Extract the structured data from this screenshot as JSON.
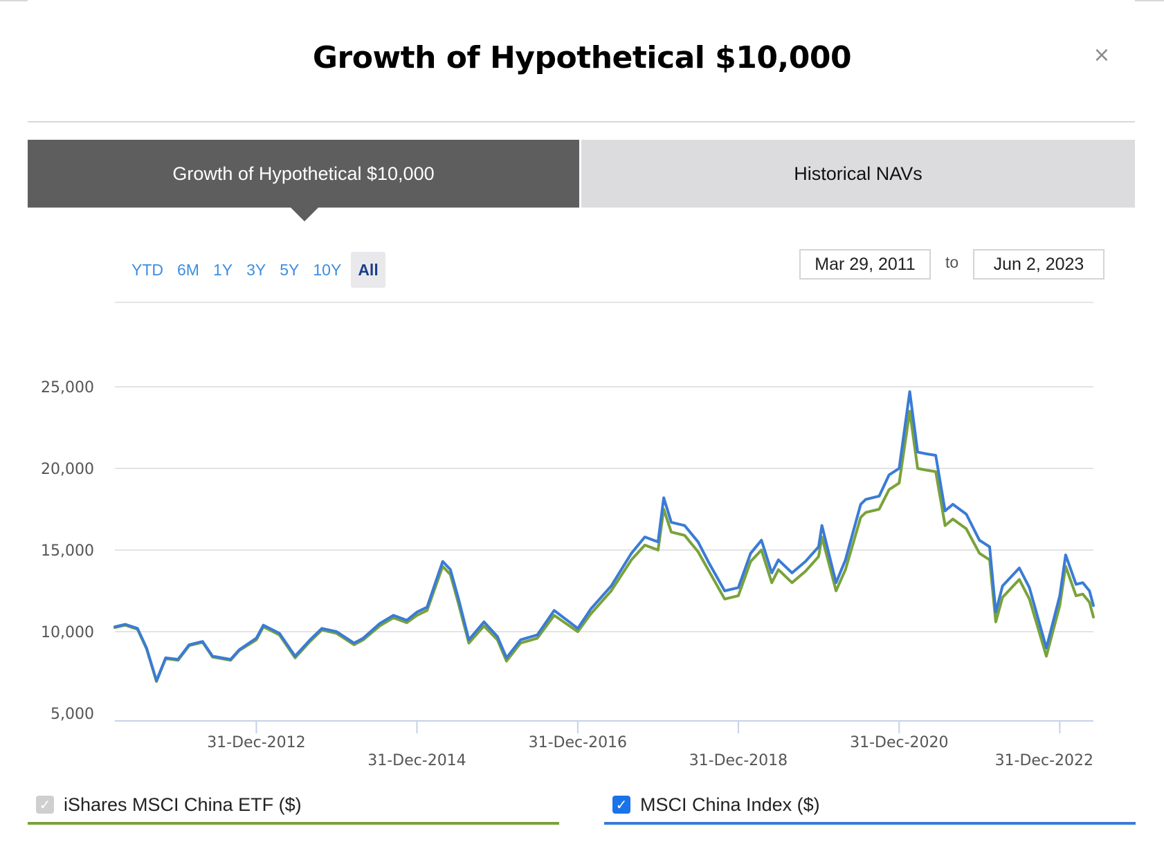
{
  "modal": {
    "title": "Growth of Hypothetical $10,000",
    "close_icon": "×"
  },
  "tabs": [
    {
      "label": "Growth of Hypothetical $10,000",
      "active": true
    },
    {
      "label": "Historical NAVs",
      "active": false
    }
  ],
  "range_buttons": [
    "YTD",
    "6M",
    "1Y",
    "3Y",
    "5Y",
    "10Y",
    "All"
  ],
  "active_range": "All",
  "date_range": {
    "from": "Mar 29, 2011",
    "separator": "to",
    "to": "Jun 2, 2023"
  },
  "legend": [
    {
      "label": "iShares MSCI China ETF ($)",
      "checked": true,
      "disabled": true
    },
    {
      "label": "MSCI China Index ($)",
      "checked": true,
      "disabled": false
    }
  ],
  "colors": {
    "etf": "#7aa23a",
    "index": "#3a7bd5",
    "grid": "#e3e3e3",
    "axis": "#c4d2e6",
    "tab_active": "#5e5e5e",
    "tab_inactive": "#dcdcdf"
  },
  "chart_data": {
    "type": "line",
    "xlabel": "",
    "ylabel": "",
    "x_range": [
      "2011-03-29",
      "2023-06-02"
    ],
    "ylim": [
      5000,
      30000
    ],
    "y_ticks": [
      5000,
      10000,
      15000,
      20000,
      25000
    ],
    "y_tick_labels": [
      "5,000",
      "10,000",
      "15,000",
      "20,000",
      "25,000"
    ],
    "x_ticks": [
      "2012-12-31",
      "2014-12-31",
      "2016-12-31",
      "2018-12-31",
      "2020-12-31",
      "2022-12-31"
    ],
    "x_tick_labels": [
      "31-Dec-2012",
      "31-Dec-2014",
      "31-Dec-2016",
      "31-Dec-2018",
      "31-Dec-2020",
      "31-Dec-2022"
    ],
    "grid": true,
    "series": [
      {
        "name": "MSCI China Index ($)",
        "color": "#3a7bd5",
        "points": [
          [
            "2011-03-29",
            10300
          ],
          [
            "2011-05-15",
            10450
          ],
          [
            "2011-07-10",
            10200
          ],
          [
            "2011-08-20",
            9000
          ],
          [
            "2011-10-04",
            7000
          ],
          [
            "2011-11-15",
            8400
          ],
          [
            "2012-01-10",
            8300
          ],
          [
            "2012-03-01",
            9200
          ],
          [
            "2012-05-01",
            9400
          ],
          [
            "2012-06-15",
            8500
          ],
          [
            "2012-09-05",
            8300
          ],
          [
            "2012-10-15",
            8900
          ],
          [
            "2012-12-31",
            9600
          ],
          [
            "2013-02-01",
            10400
          ],
          [
            "2013-04-15",
            9900
          ],
          [
            "2013-06-25",
            8500
          ],
          [
            "2013-09-01",
            9500
          ],
          [
            "2013-10-25",
            10200
          ],
          [
            "2013-12-31",
            10000
          ],
          [
            "2014-03-20",
            9300
          ],
          [
            "2014-05-01",
            9600
          ],
          [
            "2014-07-15",
            10500
          ],
          [
            "2014-09-15",
            11000
          ],
          [
            "2014-11-15",
            10700
          ],
          [
            "2014-12-31",
            11200
          ],
          [
            "2015-02-15",
            11500
          ],
          [
            "2015-04-27",
            14300
          ],
          [
            "2015-06-01",
            13800
          ],
          [
            "2015-07-08",
            12000
          ],
          [
            "2015-08-24",
            9500
          ],
          [
            "2015-11-01",
            10600
          ],
          [
            "2016-01-01",
            9700
          ],
          [
            "2016-02-11",
            8400
          ],
          [
            "2016-04-15",
            9500
          ],
          [
            "2016-06-30",
            9800
          ],
          [
            "2016-09-15",
            11300
          ],
          [
            "2016-12-31",
            10200
          ],
          [
            "2017-03-01",
            11400
          ],
          [
            "2017-06-01",
            12800
          ],
          [
            "2017-09-01",
            14800
          ],
          [
            "2017-11-01",
            15800
          ],
          [
            "2017-12-31",
            15500
          ],
          [
            "2018-01-26",
            18200
          ],
          [
            "2018-03-01",
            16700
          ],
          [
            "2018-05-01",
            16500
          ],
          [
            "2018-07-01",
            15500
          ],
          [
            "2018-08-20",
            14200
          ],
          [
            "2018-10-30",
            12500
          ],
          [
            "2018-12-31",
            12700
          ],
          [
            "2019-02-25",
            14800
          ],
          [
            "2019-04-15",
            15600
          ],
          [
            "2019-06-01",
            13600
          ],
          [
            "2019-07-01",
            14400
          ],
          [
            "2019-09-01",
            13600
          ],
          [
            "2019-11-01",
            14300
          ],
          [
            "2019-12-31",
            15200
          ],
          [
            "2020-01-15",
            16500
          ],
          [
            "2020-03-19",
            13000
          ],
          [
            "2020-05-01",
            14400
          ],
          [
            "2020-07-09",
            17800
          ],
          [
            "2020-08-01",
            18100
          ],
          [
            "2020-10-01",
            18300
          ],
          [
            "2020-11-15",
            19600
          ],
          [
            "2020-12-31",
            20000
          ],
          [
            "2021-02-17",
            24700
          ],
          [
            "2021-03-25",
            21000
          ],
          [
            "2021-05-01",
            20900
          ],
          [
            "2021-06-15",
            20800
          ],
          [
            "2021-07-28",
            17400
          ],
          [
            "2021-09-01",
            17800
          ],
          [
            "2021-11-01",
            17200
          ],
          [
            "2021-12-31",
            15600
          ],
          [
            "2022-02-15",
            15200
          ],
          [
            "2022-03-15",
            11200
          ],
          [
            "2022-04-15",
            12800
          ],
          [
            "2022-06-30",
            13900
          ],
          [
            "2022-08-15",
            12700
          ],
          [
            "2022-10-31",
            9000
          ],
          [
            "2022-12-31",
            12200
          ],
          [
            "2023-01-27",
            14700
          ],
          [
            "2023-03-15",
            12900
          ],
          [
            "2023-04-15",
            13000
          ],
          [
            "2023-05-15",
            12500
          ],
          [
            "2023-06-02",
            11600
          ]
        ]
      },
      {
        "name": "iShares MSCI China ETF ($)",
        "color": "#7aa23a",
        "points": [
          [
            "2011-03-29",
            10250
          ],
          [
            "2011-05-15",
            10400
          ],
          [
            "2011-07-10",
            10150
          ],
          [
            "2011-08-20",
            8950
          ],
          [
            "2011-10-04",
            6950
          ],
          [
            "2011-11-15",
            8350
          ],
          [
            "2012-01-10",
            8250
          ],
          [
            "2012-03-01",
            9150
          ],
          [
            "2012-05-01",
            9350
          ],
          [
            "2012-06-15",
            8450
          ],
          [
            "2012-09-05",
            8250
          ],
          [
            "2012-10-15",
            8850
          ],
          [
            "2012-12-31",
            9500
          ],
          [
            "2013-02-01",
            10300
          ],
          [
            "2013-04-15",
            9800
          ],
          [
            "2013-06-25",
            8400
          ],
          [
            "2013-09-01",
            9400
          ],
          [
            "2013-10-25",
            10100
          ],
          [
            "2013-12-31",
            9900
          ],
          [
            "2014-03-20",
            9200
          ],
          [
            "2014-05-01",
            9500
          ],
          [
            "2014-07-15",
            10350
          ],
          [
            "2014-09-15",
            10850
          ],
          [
            "2014-11-15",
            10550
          ],
          [
            "2014-12-31",
            11000
          ],
          [
            "2015-02-15",
            11300
          ],
          [
            "2015-04-27",
            14000
          ],
          [
            "2015-06-01",
            13500
          ],
          [
            "2015-07-08",
            11700
          ],
          [
            "2015-08-24",
            9300
          ],
          [
            "2015-11-01",
            10350
          ],
          [
            "2016-01-01",
            9500
          ],
          [
            "2016-02-11",
            8200
          ],
          [
            "2016-04-15",
            9300
          ],
          [
            "2016-06-30",
            9600
          ],
          [
            "2016-09-15",
            11000
          ],
          [
            "2016-12-31",
            10000
          ],
          [
            "2017-03-01",
            11100
          ],
          [
            "2017-06-01",
            12500
          ],
          [
            "2017-09-01",
            14400
          ],
          [
            "2017-11-01",
            15300
          ],
          [
            "2017-12-31",
            15000
          ],
          [
            "2018-01-26",
            17500
          ],
          [
            "2018-03-01",
            16100
          ],
          [
            "2018-05-01",
            15900
          ],
          [
            "2018-07-01",
            14900
          ],
          [
            "2018-08-20",
            13700
          ],
          [
            "2018-10-30",
            12000
          ],
          [
            "2018-12-31",
            12200
          ],
          [
            "2019-02-25",
            14300
          ],
          [
            "2019-04-15",
            15000
          ],
          [
            "2019-06-01",
            13000
          ],
          [
            "2019-07-01",
            13800
          ],
          [
            "2019-09-01",
            13000
          ],
          [
            "2019-11-01",
            13700
          ],
          [
            "2019-12-31",
            14600
          ],
          [
            "2020-01-15",
            15800
          ],
          [
            "2020-03-19",
            12500
          ],
          [
            "2020-05-01",
            13800
          ],
          [
            "2020-07-09",
            17000
          ],
          [
            "2020-08-01",
            17300
          ],
          [
            "2020-10-01",
            17500
          ],
          [
            "2020-11-15",
            18700
          ],
          [
            "2020-12-31",
            19100
          ],
          [
            "2021-02-17",
            23500
          ],
          [
            "2021-03-25",
            20000
          ],
          [
            "2021-05-01",
            19900
          ],
          [
            "2021-06-15",
            19800
          ],
          [
            "2021-07-28",
            16500
          ],
          [
            "2021-09-01",
            16900
          ],
          [
            "2021-11-01",
            16300
          ],
          [
            "2021-12-31",
            14800
          ],
          [
            "2022-02-15",
            14400
          ],
          [
            "2022-03-15",
            10600
          ],
          [
            "2022-04-15",
            12100
          ],
          [
            "2022-06-30",
            13200
          ],
          [
            "2022-08-15",
            12000
          ],
          [
            "2022-10-31",
            8500
          ],
          [
            "2022-12-31",
            11600
          ],
          [
            "2023-01-27",
            14000
          ],
          [
            "2023-03-15",
            12200
          ],
          [
            "2023-04-15",
            12300
          ],
          [
            "2023-05-15",
            11800
          ],
          [
            "2023-06-02",
            10900
          ]
        ]
      }
    ]
  }
}
